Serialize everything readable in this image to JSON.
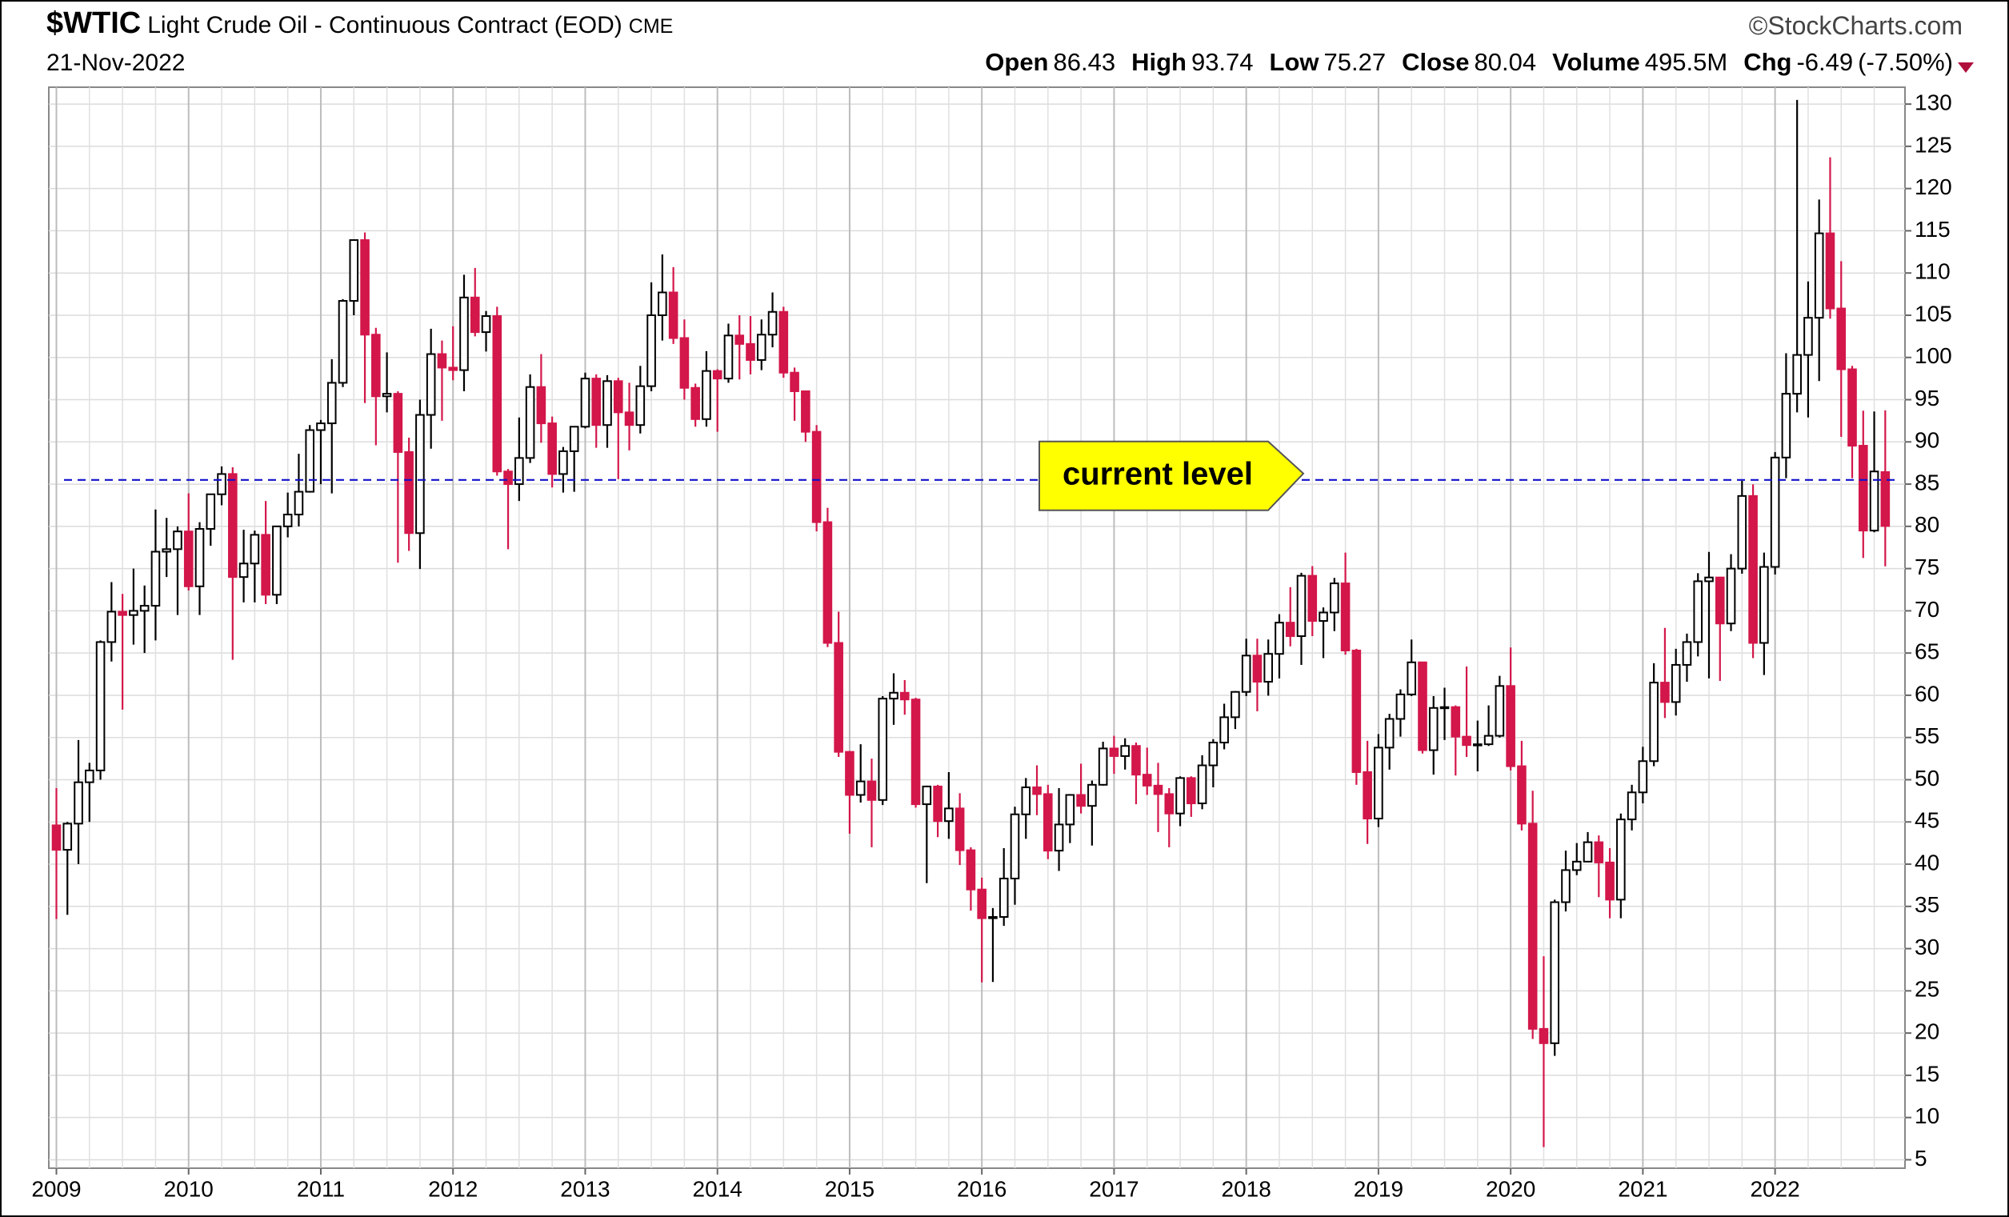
{
  "chart_data": {
    "type": "candlestick",
    "symbol": "$WTIC",
    "title": "Light Crude Oil - Continuous Contract (EOD)",
    "exchange": "CME",
    "source": "©StockCharts.com",
    "date": "21-Nov-2022",
    "stats": [
      {
        "label": "Open",
        "value": 86.43
      },
      {
        "label": "High",
        "value": 93.74
      },
      {
        "label": "Low",
        "value": 75.27
      },
      {
        "label": "Close",
        "value": 80.04
      },
      {
        "label": "Volume",
        "value": "495.5M"
      },
      {
        "label": "Chg",
        "value": -6.49,
        "extra": "(-7.50%)"
      }
    ],
    "categories": [
      "2009",
      null,
      null,
      null,
      null,
      null,
      null,
      null,
      null,
      null,
      null,
      null,
      "2010",
      null,
      null,
      null,
      null,
      null,
      null,
      null,
      null,
      null,
      null,
      null,
      "2011",
      null,
      null,
      null,
      null,
      null,
      null,
      null,
      null,
      null,
      null,
      null,
      "2012",
      null,
      null,
      null,
      null,
      null,
      null,
      null,
      null,
      null,
      null,
      null,
      "2013",
      null,
      null,
      null,
      null,
      null,
      null,
      null,
      null,
      null,
      null,
      null,
      "2014",
      null,
      null,
      null,
      null,
      null,
      null,
      null,
      null,
      null,
      null,
      null,
      "2015",
      null,
      null,
      null,
      null,
      null,
      null,
      null,
      null,
      null,
      null,
      null,
      "2016",
      null,
      null,
      null,
      null,
      null,
      null,
      null,
      null,
      null,
      null,
      null,
      "2017",
      null,
      null,
      null,
      null,
      null,
      null,
      null,
      null,
      null,
      null,
      null,
      "2018",
      null,
      null,
      null,
      null,
      null,
      null,
      null,
      null,
      null,
      null,
      null,
      "2019",
      null,
      null,
      null,
      null,
      null,
      null,
      null,
      null,
      null,
      null,
      null,
      "2020",
      null,
      null,
      null,
      null,
      null,
      null,
      null,
      null,
      null,
      null,
      null,
      "2021",
      null,
      null,
      null,
      null,
      null,
      null,
      null,
      null,
      null,
      null,
      null,
      "2022",
      null,
      null,
      null,
      null,
      null,
      null,
      null,
      null,
      null,
      null
    ],
    "open": [
      44.6,
      41.7,
      44.8,
      49.7,
      51.1,
      66.3,
      69.9,
      69.5,
      70,
      70.6,
      77,
      77.3,
      79.4,
      72.9,
      79.7,
      83.8,
      86.2,
      74,
      75.6,
      79,
      71.9,
      80,
      81.4,
      84.1,
      91.4,
      92.2,
      97,
      106.7,
      113.9,
      102.7,
      95.4,
      95.7,
      88.8,
      79.2,
      93.2,
      100.4,
      98.8,
      98.5,
      107.1,
      103,
      104.9,
      86.5,
      85,
      88.1,
      96.5,
      92.2,
      86.2,
      88.9,
      91.8,
      97.5,
      92,
      97.2,
      93.5,
      92,
      96.6,
      105,
      107.7,
      102.3,
      96.4,
      92.7,
      98.4,
      97.5,
      102.6,
      101.6,
      99.7,
      102.7,
      105.4,
      98.2,
      96,
      91.2,
      80.5,
      66.2,
      53.3,
      48.2,
      49.8,
      47.6,
      59.6,
      60.3,
      59.5,
      47.1,
      49.2,
      45.1,
      46.6,
      41.65,
      37,
      33.6,
      33.75,
      38.3,
      45.9,
      49.1,
      48.3,
      41.6,
      44.7,
      48.2,
      46.9,
      49.4,
      53.7,
      52.8,
      54,
      50.6,
      49.3,
      48.3,
      46,
      50.2,
      47.2,
      51.7,
      54.4,
      57.4,
      60.4,
      64.7,
      61.6,
      64.9,
      68.6,
      67,
      74.15,
      68.8,
      69.8,
      73.25,
      65.3,
      50.9,
      45.4,
      53.8,
      57.2,
      60.1,
      63.9,
      53.5,
      58.5,
      58.6,
      55.1,
      54.1,
      54.2,
      55.2,
      61.1,
      51.6,
      44.8,
      20.5,
      18.8,
      35.5,
      39.3,
      40.3,
      42.6,
      40.2,
      35.8,
      45.3,
      48.5,
      52.2,
      61.5,
      59.2,
      63.6,
      66.3,
      73.5,
      73.95,
      68.5,
      75,
      83.6,
      66.2,
      75.2,
      88.15,
      95.7,
      100.3,
      104.7,
      114.7,
      105.8,
      98.6,
      89.55,
      79.5,
      86.43
    ],
    "high": [
      49,
      45,
      54.7,
      52,
      66.5,
      73.4,
      72,
      75,
      73,
      82,
      81,
      80,
      83.9,
      80.5,
      83.8,
      87.1,
      87,
      79.6,
      79.5,
      83,
      80,
      84,
      88.6,
      92,
      92.6,
      99.8,
      106.9,
      114,
      114.8,
      103.5,
      100.6,
      96,
      90.5,
      95,
      103.4,
      102,
      103.7,
      109.8,
      110.6,
      105.5,
      106,
      86.8,
      92.9,
      98,
      100.4,
      93,
      89.4,
      91.3,
      98.2,
      98,
      97.9,
      97.6,
      97,
      99,
      108.9,
      112.2,
      110.7,
      104.5,
      96.9,
      100.75,
      98.6,
      104,
      105,
      104.9,
      104.5,
      107.7,
      106,
      98.8,
      96,
      92,
      82.2,
      69.9,
      53.4,
      54.2,
      52.5,
      59.9,
      62.6,
      61.8,
      59.7,
      49.3,
      49.4,
      50.9,
      48.4,
      42,
      38.4,
      34.8,
      41.9,
      46.8,
      50.2,
      51.7,
      49.4,
      49,
      48.3,
      51.9,
      49.9,
      54.5,
      55.2,
      54.9,
      54.4,
      53.8,
      52,
      49,
      50.4,
      50.4,
      52.9,
      54.8,
      59,
      60.5,
      66.7,
      66.7,
      66.6,
      69.6,
      72.8,
      74.5,
      75.3,
      70.4,
      73.9,
      76.9,
      65.5,
      54.6,
      55.4,
      57.8,
      60.7,
      66.6,
      63.9,
      59.9,
      60.9,
      58.8,
      63.4,
      57,
      58.8,
      62.3,
      65.65,
      54.6,
      48.7,
      29.1,
      35.8,
      41.6,
      42.5,
      43.8,
      43.4,
      41.9,
      46,
      49.4,
      53.9,
      63.8,
      67.98,
      65.5,
      67.3,
      74.45,
      76.98,
      74,
      76.7,
      85.4,
      84.97,
      76.9,
      88.8,
      100.5,
      130.5,
      109,
      118.7,
      123.7,
      111.4,
      99,
      93.7,
      93.6,
      93.74
    ],
    "low": [
      33.5,
      34,
      40,
      45,
      50,
      64,
      58.3,
      66,
      65,
      66.5,
      74,
      69.5,
      72.4,
      69.5,
      77.7,
      82.5,
      64.2,
      71,
      71,
      70.8,
      70.8,
      78.7,
      80,
      84,
      85,
      83.9,
      96.5,
      105,
      94.6,
      89.6,
      93.5,
      75.7,
      77.1,
      74.95,
      89.2,
      92.5,
      97.3,
      96,
      102.5,
      100.7,
      86,
      77.3,
      83,
      87.5,
      89.9,
      84.6,
      84,
      84.1,
      91.6,
      89.3,
      89.3,
      85.6,
      89,
      91,
      96,
      102,
      101.6,
      95,
      91.8,
      91.8,
      91.2,
      97,
      97.4,
      98,
      98.5,
      101.2,
      97.6,
      92.5,
      90,
      79.4,
      65.7,
      52.7,
      43.6,
      47.3,
      42,
      47,
      56.5,
      57.7,
      46.7,
      37.75,
      43.2,
      43,
      39.9,
      34.5,
      26,
      26.05,
      32.7,
      35.2,
      43,
      45.8,
      40.6,
      39.2,
      42.5,
      46,
      42.2,
      49.3,
      50.7,
      51.2,
      47.1,
      48.2,
      43.8,
      42,
      44.5,
      45.6,
      46.5,
      49.1,
      53.6,
      56,
      59.9,
      58.1,
      59.95,
      62,
      65.8,
      63.6,
      67,
      64.4,
      67.6,
      64.8,
      49.4,
      42.4,
      44.4,
      51.2,
      55.1,
      59.9,
      53.1,
      50.6,
      54.7,
      50.5,
      52.7,
      50.99,
      54,
      55,
      51.1,
      44,
      19.3,
      6.5,
      17.3,
      34.4,
      38.7,
      40.3,
      36.1,
      33.6,
      33.6,
      44,
      47.2,
      51.6,
      57.3,
      57.6,
      61.6,
      64.6,
      62,
      61.7,
      67.6,
      74.4,
      64.4,
      62.4,
      74.3,
      85.7,
      93.5,
      92.9,
      97.2,
      104.6,
      90.6,
      85.7,
      76.25,
      79.3,
      75.27
    ],
    "close": [
      41.7,
      44.8,
      49.7,
      51.1,
      66.3,
      69.9,
      69.5,
      70,
      70.6,
      77,
      77.3,
      79.4,
      72.9,
      79.7,
      83.8,
      86.2,
      74,
      75.6,
      79,
      71.9,
      80,
      81.4,
      84.1,
      91.4,
      92.2,
      97,
      106.7,
      113.9,
      102.7,
      95.4,
      95.7,
      88.8,
      79.2,
      93.2,
      100.4,
      98.8,
      98.5,
      107.1,
      103,
      104.9,
      86.5,
      85,
      88.1,
      96.5,
      92.2,
      86.2,
      88.9,
      91.8,
      97.5,
      92,
      97.2,
      93.5,
      92,
      96.6,
      105,
      107.7,
      102.3,
      96.4,
      92.7,
      98.4,
      97.5,
      102.6,
      101.6,
      99.7,
      102.7,
      105.4,
      98.2,
      96,
      91.2,
      80.5,
      66.2,
      53.3,
      48.2,
      49.8,
      47.6,
      59.6,
      60.3,
      59.5,
      47.1,
      49.2,
      45.1,
      46.6,
      41.65,
      37,
      33.6,
      33.75,
      38.3,
      45.9,
      49.1,
      48.3,
      41.6,
      44.7,
      48.2,
      46.9,
      49.4,
      53.7,
      52.8,
      54,
      50.6,
      49.3,
      48.3,
      46,
      50.2,
      47.2,
      51.7,
      54.4,
      57.4,
      60.4,
      64.7,
      61.6,
      64.9,
      68.6,
      67,
      74.15,
      68.8,
      69.8,
      73.25,
      65.3,
      50.9,
      45.4,
      53.8,
      57.2,
      60.1,
      63.9,
      53.5,
      58.5,
      58.6,
      55.1,
      54.1,
      54.2,
      55.2,
      61.1,
      51.6,
      44.8,
      20.5,
      18.8,
      35.5,
      39.3,
      40.3,
      42.6,
      40.2,
      35.8,
      45.3,
      48.5,
      52.2,
      61.5,
      59.2,
      63.6,
      66.3,
      73.5,
      73.95,
      68.5,
      75,
      83.6,
      66.2,
      75.2,
      88.15,
      95.7,
      100.3,
      104.7,
      114.7,
      105.8,
      98.6,
      89.55,
      79.5,
      86.5,
      80.04
    ],
    "up_color": "#000000",
    "down_color": "#d3174a",
    "ylim": [
      4,
      132
    ],
    "yticks": [
      5,
      10,
      15,
      20,
      25,
      30,
      35,
      40,
      45,
      50,
      55,
      60,
      65,
      70,
      75,
      80,
      85,
      90,
      95,
      100,
      105,
      110,
      115,
      120,
      125,
      130
    ],
    "grid": true,
    "hline": {
      "value": 85.5,
      "color": "#1010cc"
    },
    "annotation": "current level"
  }
}
